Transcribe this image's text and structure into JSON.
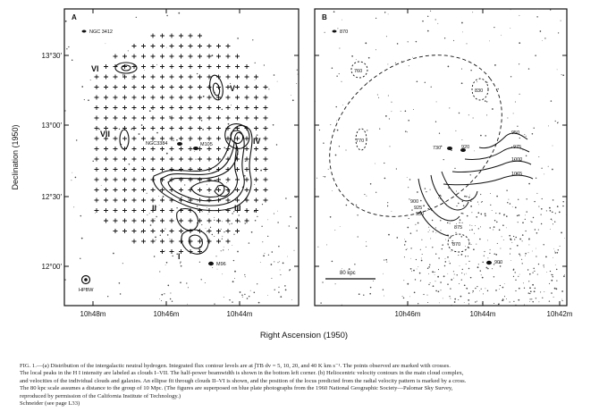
{
  "figure": {
    "panel_a": {
      "letter": "A",
      "galaxy_ngc3412": "NGC 3412",
      "galaxy_ngc3384": "NGC3384",
      "galaxy_m105": "M105",
      "galaxy_m96": "M96",
      "beam_label": "HPBW",
      "cloud_labels": [
        "I",
        "II",
        "III",
        "IV",
        "V",
        "VI",
        "VII"
      ],
      "y_ticks": [
        "13°30′",
        "13°00′",
        "12°30′",
        "12°00′"
      ],
      "x_ticks": [
        "10h48m",
        "10h46m",
        "10h44m"
      ]
    },
    "panel_b": {
      "letter": "B",
      "galaxy_label": "870",
      "velocity_labels": [
        "760",
        "830",
        "770",
        "730",
        "920",
        "950",
        "975",
        "1000",
        "1065",
        "900",
        "925",
        "950",
        "875",
        "870",
        "900"
      ],
      "scale_label": "80 kpc",
      "x_ticks": [
        "10h46m",
        "10h44m",
        "10h42m"
      ]
    },
    "ylabel": "Declination (1950)",
    "xlabel": "Right Ascension (1950)"
  },
  "caption": {
    "lines": [
      "FIG. 1.—(a) Distribution of the intergalactic neutral hydrogen. Integrated flux contour levels are at ∫TB dv = 5, 10, 20, and 40 K km s⁻¹. The points observed are marked with crosses.",
      "The local peaks in the H I intensity are labeled as clouds I–VII. The half-power beamwidth is shown in the bottom left corner. (b) Heliocentric velocity contours in the main cloud complex,",
      "and velocities of the individual clouds and galaxies. An ellipse fit through clouds II–VI is shown, and the position of the locus predicted from the radial velocity pattern is marked by a cross.",
      "The 80 kpc scale assumes a distance to the group of 10 Mpc. (The figures are superposed on blue plate photographs from the 1960 National Geographic Society—Palomar Sky Survey,",
      "reproduced by permission of the California Institute of Technology.)",
      "Schneider (see page L33)"
    ]
  }
}
